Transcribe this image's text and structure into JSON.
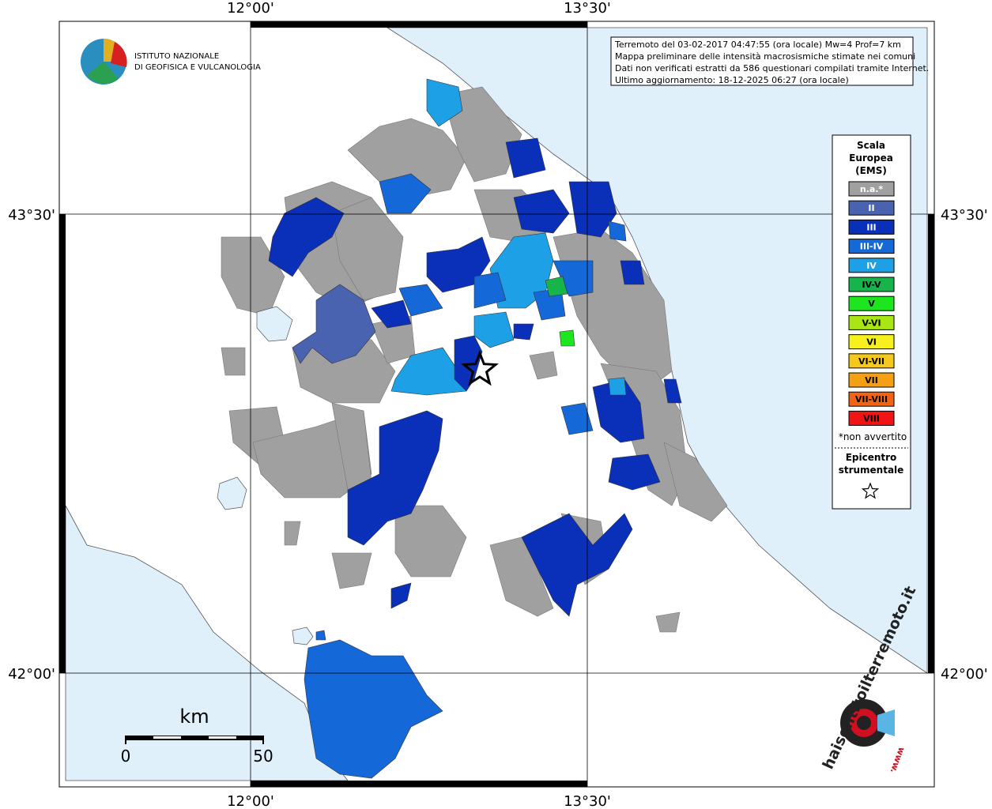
{
  "logo": {
    "line1": "ISTITUTO NAZIONALE",
    "line2": "DI GEOFISICA E VULCANOLOGIA"
  },
  "info": [
    "Terremoto del 03-02-2017 04:47:55 (ora locale) Mw=4 Prof=7 km",
    "Mappa preliminare delle intensità macrosismiche stimate nei comuni",
    "Dati non verificati estratti da 586 questionari compilati tramite Internet.",
    "Ultimo aggiornamento: 18-12-2025 06:27 (ora locale)"
  ],
  "axes": {
    "top": [
      "12°00'",
      "13°30'"
    ],
    "bottom": [
      "12°00'",
      "13°30'"
    ],
    "left": [
      "43°30'",
      "42°00'"
    ],
    "right": [
      "43°30'",
      "42°00'"
    ]
  },
  "legend": {
    "title": [
      "Scala",
      "Europea",
      "(EMS)"
    ],
    "items": [
      {
        "label": "n.a.*",
        "color": "#a0a0a0"
      },
      {
        "label": "II",
        "color": "#4a63b0"
      },
      {
        "label": "III",
        "color": "#0a2fb8"
      },
      {
        "label": "III-IV",
        "color": "#1468d8"
      },
      {
        "label": "IV",
        "color": "#1ea0e6"
      },
      {
        "label": "IV-V",
        "color": "#17b44c"
      },
      {
        "label": "V",
        "color": "#1ee61e"
      },
      {
        "label": "V-VI",
        "color": "#a8e614"
      },
      {
        "label": "VI",
        "color": "#f5f01e"
      },
      {
        "label": "VI-VII",
        "color": "#f5c81e"
      },
      {
        "label": "VII",
        "color": "#f5a014"
      },
      {
        "label": "VII-VIII",
        "color": "#f06414"
      },
      {
        "label": "VIII",
        "color": "#f01414"
      }
    ],
    "note": "*non avvertito",
    "epicenter": [
      "Epicentro",
      "strumentale"
    ]
  },
  "scale_bar": {
    "unit": "km",
    "labels": [
      "0",
      "50"
    ]
  },
  "watermark": {
    "site": "haisentitoilterremoto.it",
    "www": "www."
  }
}
